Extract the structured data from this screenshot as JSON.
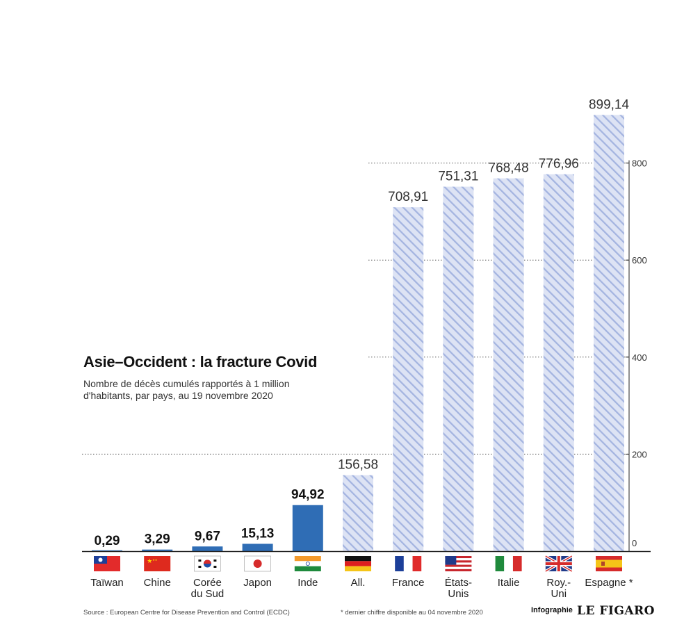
{
  "title": "Asie–Occident : la fracture Covid",
  "subtitle": "Nombre de décès cumulés rapportés à 1 million d'habitants, par pays, au 19 novembre 2020",
  "source": "Source : European Centre for Disease Prevention and Control (ECDC)",
  "footnote": "* dernier chiffre disponible au 04 novembre 2020",
  "credit": "Infographie",
  "brand": "LE FIGARO",
  "colors": {
    "asia_bar": "#2f6db5",
    "west_stripe_bg": "#dde3f4",
    "west_stripe_line": "#a4b4e0",
    "axis": "#222222",
    "grid": "#555555"
  },
  "chart_data": {
    "type": "bar",
    "categories": [
      "Taïwan",
      "Chine",
      "Corée du Sud",
      "Japon",
      "Inde",
      "All.",
      "France",
      "États-Unis",
      "Italie",
      "Roy.-Uni",
      "Espagne *"
    ],
    "category_lines": [
      [
        "Taïwan"
      ],
      [
        "Chine"
      ],
      [
        "Corée",
        "du Sud"
      ],
      [
        "Japon"
      ],
      [
        "Inde"
      ],
      [
        "All."
      ],
      [
        "France"
      ],
      [
        "États-",
        "Unis"
      ],
      [
        "Italie"
      ],
      [
        "Roy.-",
        "Uni"
      ],
      [
        "Espagne *"
      ]
    ],
    "values": [
      0.29,
      3.29,
      9.67,
      15.13,
      94.92,
      156.58,
      708.91,
      751.31,
      768.48,
      776.96,
      899.14
    ],
    "value_labels": [
      "0,29",
      "3,29",
      "9,67",
      "15,13",
      "94,92",
      "156,58",
      "708,91",
      "751,31",
      "768,48",
      "776,96",
      "899,14"
    ],
    "groups": [
      "asia",
      "asia",
      "asia",
      "asia",
      "asia",
      "west",
      "west",
      "west",
      "west",
      "west",
      "west"
    ],
    "flag_icons": [
      "taiwan-flag-icon",
      "china-flag-icon",
      "south-korea-flag-icon",
      "japan-flag-icon",
      "india-flag-icon",
      "germany-flag-icon",
      "france-flag-icon",
      "usa-flag-icon",
      "italy-flag-icon",
      "uk-flag-icon",
      "spain-flag-icon"
    ],
    "ylim": [
      0,
      900
    ],
    "yticks": [
      0,
      200,
      400,
      600,
      800
    ],
    "ytick_labels": [
      "0",
      "200",
      "400",
      "600",
      "800"
    ],
    "grid": "dotted horizontal",
    "y_axis_position": "right"
  }
}
